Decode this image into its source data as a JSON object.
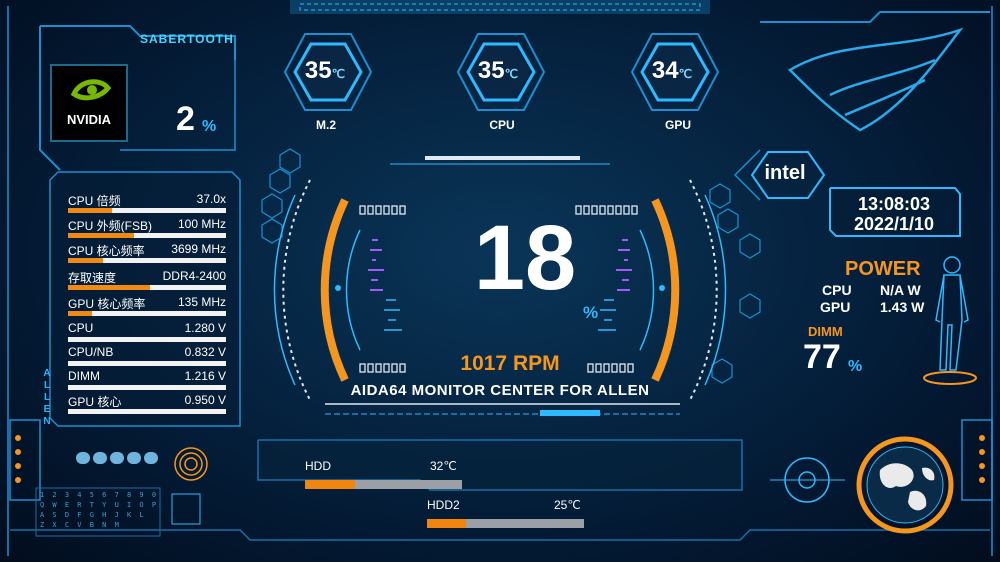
{
  "brand": "SABERTOOTH",
  "gpu_vendor": "NVIDIA",
  "gpu_load": {
    "value": "2",
    "unit": "%"
  },
  "temps": [
    {
      "value": "35",
      "unit": "℃",
      "label": "M.2"
    },
    {
      "value": "35",
      "unit": "℃",
      "label": "CPU"
    },
    {
      "value": "34",
      "unit": "℃",
      "label": "GPU"
    }
  ],
  "stats": [
    {
      "label": "CPU 倍频",
      "value": "37.0x",
      "fill": 0.28
    },
    {
      "label": "CPU 外频(FSB)",
      "value": "100 MHz",
      "fill": 0.42
    },
    {
      "label": "CPU 核心频率",
      "value": "3699 MHz",
      "fill": 0.22
    },
    {
      "label": "存取速度",
      "value": "DDR4-2400",
      "fill": 0.52
    },
    {
      "label": "GPU 核心频率",
      "value": "135 MHz",
      "fill": 0.15
    },
    {
      "label": "CPU",
      "value": "1.280 V",
      "fill": 0.0
    },
    {
      "label": "CPU/NB",
      "value": "0.832 V",
      "fill": 0.0
    },
    {
      "label": "DIMM",
      "value": "1.216 V",
      "fill": 0.0
    },
    {
      "label": "GPU 核心",
      "value": "0.950 V",
      "fill": 0.0
    }
  ],
  "side_label": "ALLEN",
  "center": {
    "value": "18",
    "unit": "%",
    "rpm": "1017 RPM",
    "title": "AIDA64 MONITOR CENTER FOR ALLEN"
  },
  "intel_logo": "intel",
  "clock": {
    "time": "13:08:03",
    "date": "2022/1/10"
  },
  "power": {
    "title": "POWER",
    "rows": [
      {
        "label": "CPU",
        "value": "N/A W"
      },
      {
        "label": "GPU",
        "value": "1.43 W"
      }
    ]
  },
  "dimm": {
    "label": "DIMM",
    "value": "77",
    "unit": "%"
  },
  "hdds": [
    {
      "label": "HDD",
      "value": "32℃",
      "fill": 0.32
    },
    {
      "label": "HDD2",
      "value": "25℃",
      "fill": 0.25
    }
  ],
  "keypad": {
    "row1": "1 2 3 4 5 6 7 8 9 0",
    "row2": "Q W E R T Y U I O P",
    "row3": "A S D F G H J K L",
    "row4": "Z X C V B N M"
  },
  "colors": {
    "accent": "#2fb9ff",
    "orange": "#f5961e",
    "frame": "#1b8fd0"
  }
}
